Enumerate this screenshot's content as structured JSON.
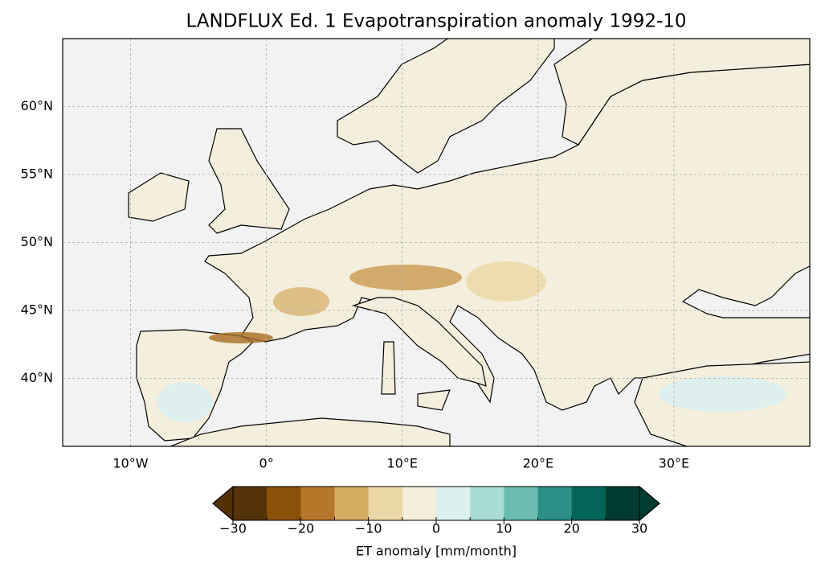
{
  "title": "LANDFLUX Ed. 1 Evapotranspiration anomaly 1992-10",
  "map": {
    "xlim": [
      -15,
      40
    ],
    "ylim": [
      35,
      65
    ],
    "grid": true,
    "xticks": [
      {
        "value": -10,
        "label": "10°W"
      },
      {
        "value": 0,
        "label": "0°"
      },
      {
        "value": 10,
        "label": "10°E"
      },
      {
        "value": 20,
        "label": "20°E"
      },
      {
        "value": 30,
        "label": "30°E"
      }
    ],
    "yticks": [
      {
        "value": 40,
        "label": "40°N"
      },
      {
        "value": 45,
        "label": "45°N"
      },
      {
        "value": 50,
        "label": "50°N"
      },
      {
        "value": 55,
        "label": "55°N"
      },
      {
        "value": 60,
        "label": "60°N"
      }
    ]
  },
  "colorbar": {
    "label": "ET anomaly [mm/month]",
    "bounds": [
      -30,
      -25,
      -20,
      -15,
      -10,
      -5,
      0,
      5,
      10,
      15,
      20,
      25,
      30
    ],
    "colors": [
      "#553309",
      "#8b510b",
      "#b5782a",
      "#d4ac62",
      "#ecd7a6",
      "#f5eedb",
      "#dcf0ee",
      "#a9ddd4",
      "#6bbdb0",
      "#2b8f86",
      "#03655a",
      "#023b31"
    ],
    "extend_colors": [
      "#543005",
      "#003c30"
    ],
    "ticks": [
      {
        "value": -30,
        "label": "−30"
      },
      {
        "value": -20,
        "label": "−20"
      },
      {
        "value": -10,
        "label": "−10"
      },
      0,
      10,
      20,
      30
    ]
  }
}
